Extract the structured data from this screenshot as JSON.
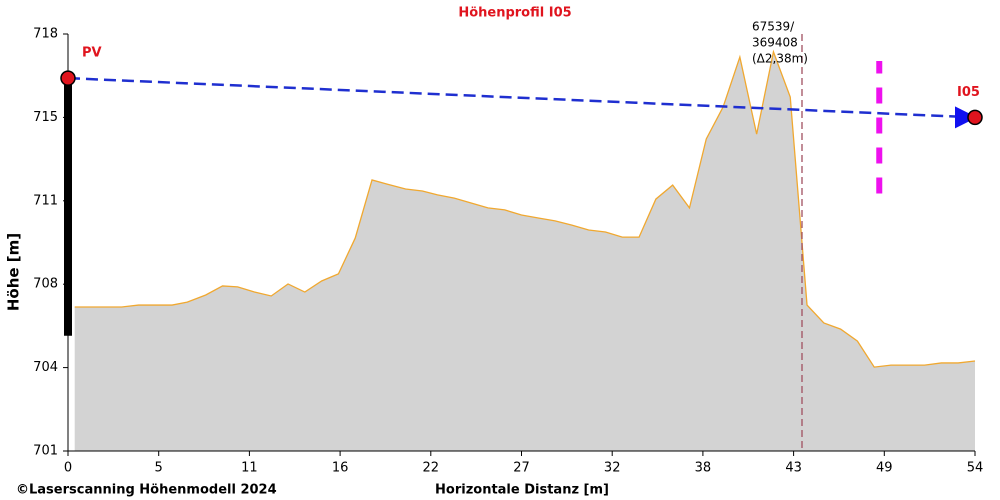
{
  "chart_data": {
    "type": "area",
    "title": "Höhenprofil  I05",
    "xlabel": "Horizontale Distanz [m]",
    "ylabel": "Höhe [m]",
    "footer": "©Laserscanning Höhenmodell 2024",
    "xlim": [
      0,
      54
    ],
    "ylim": [
      701,
      718
    ],
    "xticks": [
      0,
      {
        "value": 5.4,
        "label": "5"
      },
      {
        "value": 10.8,
        "label": "11"
      },
      {
        "value": 16.2,
        "label": "16"
      },
      {
        "value": 21.6,
        "label": "22"
      },
      27,
      {
        "value": 32.4,
        "label": "32"
      },
      {
        "value": 37.8,
        "label": "38"
      },
      {
        "value": 43.2,
        "label": "43"
      },
      {
        "value": 48.6,
        "label": "49"
      },
      54
    ],
    "yticks": [
      701,
      {
        "value": 704.4,
        "label": "704"
      },
      {
        "value": 707.8,
        "label": "708"
      },
      {
        "value": 711.2,
        "label": "711"
      },
      {
        "value": 714.6,
        "label": "715"
      },
      718
    ],
    "terrain": {
      "color": "#d3d3d3",
      "edge_color": "#f0a830",
      "x": [
        0.4,
        3.2,
        4.2,
        6.2,
        7.1,
        8.2,
        9.2,
        10.1,
        11.1,
        12.1,
        13.1,
        14.1,
        15.1,
        16.1,
        17.1,
        18.1,
        19.0,
        20.1,
        21.1,
        22.0,
        23.0,
        24.0,
        25.0,
        26.0,
        27.0,
        28.0,
        29.0,
        30.0,
        31.0,
        32.0,
        33.0,
        34.0,
        35.0,
        36.0,
        37.0,
        38.0,
        39.0,
        40.0,
        41.0,
        42.0,
        43.0,
        44.0,
        45.0,
        46.0,
        47.0,
        48.0,
        49.0,
        50.0,
        51.0,
        52.0,
        53.0,
        54.0
      ],
      "values": [
        706.87,
        706.87,
        706.95,
        706.95,
        707.07,
        707.36,
        707.73,
        707.69,
        707.48,
        707.32,
        707.81,
        707.48,
        707.93,
        708.22,
        709.68,
        712.05,
        711.88,
        711.68,
        711.6,
        711.44,
        711.31,
        711.11,
        710.91,
        710.83,
        710.62,
        710.5,
        710.38,
        710.21,
        710.01,
        709.93,
        709.72,
        709.72,
        711.27,
        711.84,
        710.91,
        713.72,
        715.02,
        717.06,
        713.92,
        717.27,
        715.43,
        706.95,
        706.22,
        705.97,
        705.48,
        704.42,
        704.5,
        704.5,
        704.5,
        704.59,
        704.59,
        704.67
      ]
    },
    "sight_line": {
      "color": "#1f2fd0",
      "x": [
        0,
        54
      ],
      "values": [
        716.2,
        714.6
      ],
      "labels": [
        "PV",
        "I05"
      ],
      "label_color": "#e0141e"
    },
    "pole": {
      "color": "#000000",
      "x": 0,
      "from": 705.7,
      "to": 716.2
    },
    "marker": {
      "color": "#ee10ee",
      "x": 48.3,
      "from": 711.5,
      "to": 716.9
    },
    "cursor": {
      "color": "#a05060",
      "x": 43.7,
      "annotation": [
        "67539/",
        "369408",
        "(Δ2,38m)"
      ]
    }
  }
}
